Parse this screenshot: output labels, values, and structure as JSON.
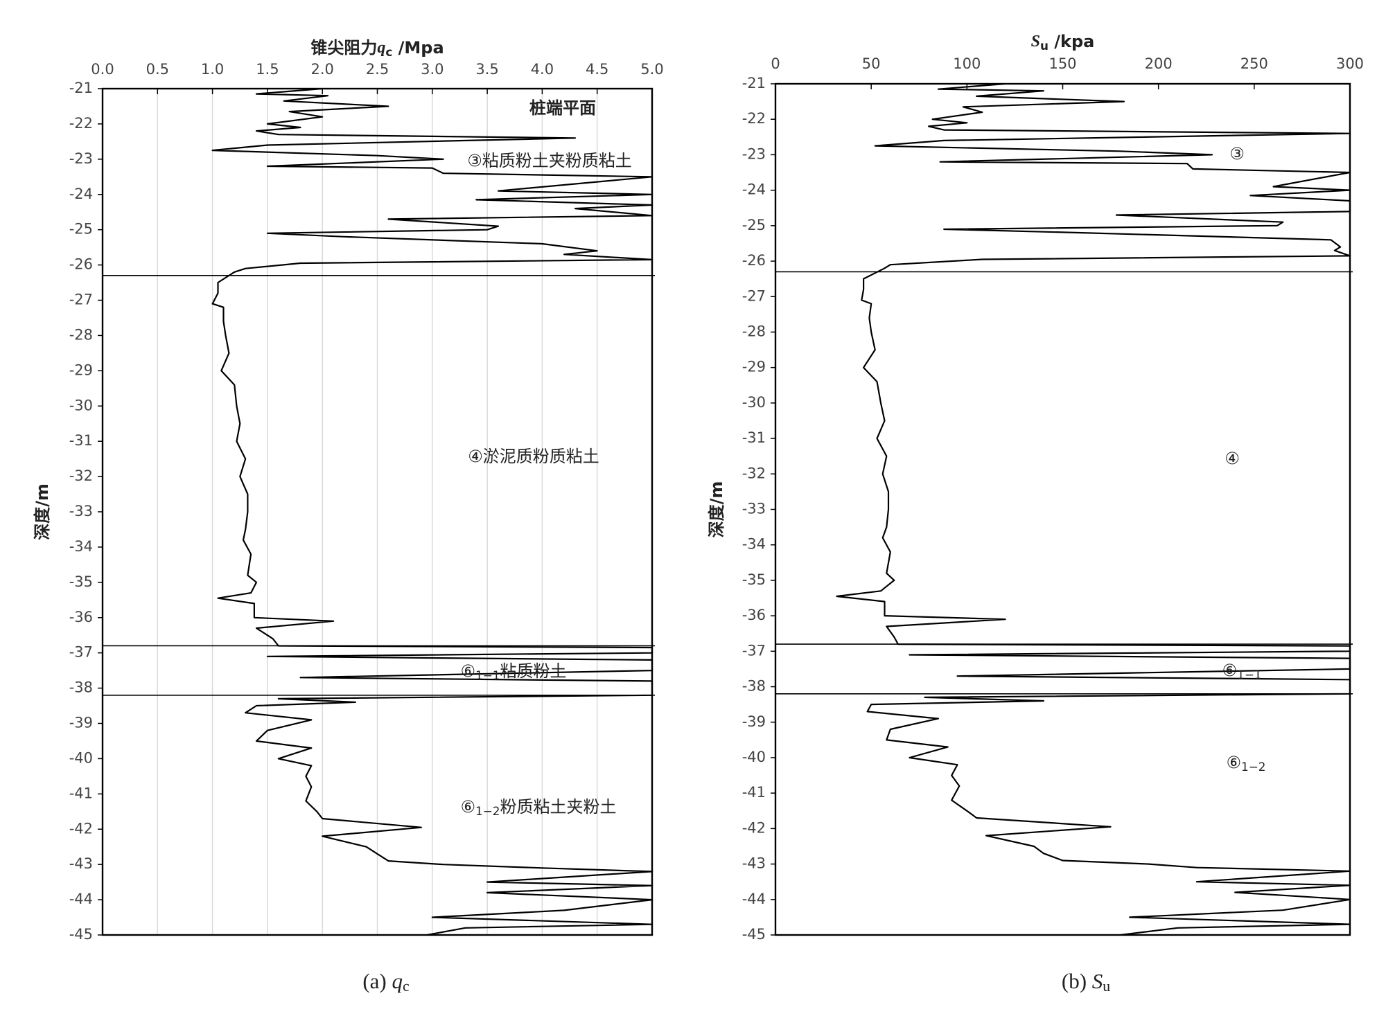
{
  "chart_data": [
    {
      "type": "line",
      "x_label": {
        "main": "锥尖阻力",
        "var": "q",
        "sub": "c",
        "unit": " /Mpa"
      },
      "y_label": "深度/m",
      "caption": {
        "prefix": "(a) ",
        "var": "q",
        "sub": "c"
      },
      "xlim": [
        0,
        5
      ],
      "xticks": [
        {
          "value": 0,
          "label": "0.0"
        },
        0.5,
        {
          "value": 1,
          "label": "1.0"
        },
        1.5,
        {
          "value": 2,
          "label": "2.0"
        },
        2.5,
        {
          "value": 3,
          "label": "3.0"
        },
        3.5,
        {
          "value": 4,
          "label": "4.0"
        },
        4.5,
        {
          "value": 5,
          "label": "5.0"
        }
      ],
      "ylim": [
        -45,
        -21
      ],
      "yticks": [
        -21,
        -22,
        -23,
        -24,
        -25,
        -26,
        -27,
        -28,
        -29,
        -30,
        -31,
        -32,
        -33,
        -34,
        -35,
        -36,
        -37,
        -38,
        -39,
        -40,
        -41,
        -42,
        -43,
        -44,
        -45
      ],
      "grid": true,
      "color": "#000000",
      "layer_boundaries": [
        -26.3,
        -36.8,
        -38.2
      ],
      "annotations": [
        {
          "text": "桩端平面"
        },
        {
          "text": "③粘质粉土夹粉质粘土"
        },
        {
          "text": "④淤泥质粉质粘土"
        },
        {
          "text": "⑥",
          "sub": "1−1",
          "rest": "粘质粉土"
        },
        {
          "text": "⑥",
          "sub": "1−2",
          "rest": "粉质粘土夹粉土"
        }
      ],
      "values": [
        -21.0,
        -21.15,
        -21.2,
        -21.35,
        -21.5,
        -21.65,
        -21.8,
        -22.0,
        -22.1,
        -22.2,
        -22.3,
        -22.4,
        -22.6,
        -22.75,
        -22.9,
        -23.0,
        -23.2,
        -23.25,
        -23.4,
        -23.5,
        -23.9,
        -24.0,
        -24.15,
        -24.3,
        -24.4,
        -24.6,
        -24.7,
        -24.9,
        -25.0,
        -25.1,
        -25.2,
        -25.4,
        -25.6,
        -25.7,
        -25.85,
        -25.95,
        -26.1,
        -26.2,
        -26.5,
        -26.8,
        -27.1,
        -27.2,
        -27.6,
        -28.0,
        -28.5,
        -29.0,
        -29.4,
        -30.0,
        -30.5,
        -31.0,
        -31.5,
        -32.0,
        -32.5,
        -33.0,
        -33.5,
        -33.8,
        -34.2,
        -34.8,
        -35.0,
        -35.3,
        -35.45,
        -35.6,
        -36.0,
        -36.1,
        -36.3,
        -36.6,
        -36.8,
        -36.85,
        -37.0,
        -37.1,
        -37.2,
        -37.5,
        -37.7,
        -37.8,
        -38.2,
        -38.3,
        -38.4,
        -38.5,
        -38.7,
        -38.9,
        -39.2,
        -39.5,
        -39.7,
        -40.0,
        -40.2,
        -40.5,
        -40.8,
        -41.2,
        -41.5,
        -41.7,
        -41.95,
        -42.2,
        -42.5,
        -42.7,
        -42.9,
        -43.0,
        -43.1,
        -43.2,
        -43.5,
        -43.6,
        -43.8,
        -44.0,
        -44.3,
        -44.5,
        -44.7,
        -44.8,
        -45.0
      ],
      "x": [
        2.0,
        1.4,
        2.05,
        1.65,
        2.6,
        1.7,
        2.0,
        1.5,
        1.8,
        1.4,
        1.6,
        4.3,
        1.5,
        1.0,
        2.5,
        3.1,
        1.5,
        3.0,
        3.1,
        5.0,
        3.6,
        5.0,
        3.4,
        5.0,
        4.3,
        5.0,
        2.6,
        3.6,
        3.5,
        1.5,
        2.2,
        4.0,
        4.5,
        4.2,
        5.0,
        1.8,
        1.3,
        1.2,
        1.05,
        1.05,
        1.0,
        1.1,
        1.1,
        1.12,
        1.15,
        1.08,
        1.2,
        1.22,
        1.25,
        1.22,
        1.3,
        1.25,
        1.32,
        1.32,
        1.3,
        1.28,
        1.35,
        1.32,
        1.4,
        1.35,
        1.05,
        1.38,
        1.38,
        2.1,
        1.4,
        1.55,
        1.6,
        5.0,
        5.0,
        1.5,
        5.0,
        5.0,
        1.8,
        5.0,
        5.0,
        1.6,
        2.3,
        1.4,
        1.3,
        1.9,
        1.5,
        1.4,
        1.9,
        1.6,
        1.9,
        1.85,
        1.9,
        1.85,
        1.95,
        2.0,
        2.9,
        2.0,
        2.4,
        2.5,
        2.6,
        3.1,
        4.0,
        5.0,
        3.5,
        5.0,
        3.5,
        5.0,
        4.2,
        3.0,
        5.0,
        3.3,
        2.95
      ]
    },
    {
      "type": "line",
      "x_label": {
        "main": "",
        "var": "S",
        "sub": "u",
        "unit": " /kpa"
      },
      "y_label": "深度/m",
      "caption": {
        "prefix": "(b) ",
        "var": "S",
        "sub": "u"
      },
      "xlim": [
        0,
        300
      ],
      "xticks": [
        0,
        50,
        100,
        150,
        200,
        250,
        300
      ],
      "ylim": [
        -45,
        -21
      ],
      "yticks": [
        -21,
        -22,
        -23,
        -24,
        -25,
        -26,
        -27,
        -28,
        -29,
        -30,
        -31,
        -32,
        -33,
        -34,
        -35,
        -36,
        -37,
        -38,
        -39,
        -40,
        -41,
        -42,
        -43,
        -44,
        -45
      ],
      "grid": false,
      "color": "#000000",
      "layer_boundaries": [
        -26.3,
        -36.8,
        -38.2
      ],
      "annotations": [
        {
          "text": "③"
        },
        {
          "text": "④"
        },
        {
          "text": "⑥",
          "sub": "1−1"
        },
        {
          "text": "⑥",
          "sub": "1−2"
        }
      ],
      "values": [
        -21.0,
        -21.15,
        -21.2,
        -21.35,
        -21.5,
        -21.65,
        -21.8,
        -22.0,
        -22.1,
        -22.2,
        -22.3,
        -22.4,
        -22.6,
        -22.75,
        -22.9,
        -23.0,
        -23.2,
        -23.25,
        -23.4,
        -23.5,
        -23.9,
        -24.0,
        -24.15,
        -24.3,
        -24.4,
        -24.6,
        -24.7,
        -24.9,
        -25.0,
        -25.1,
        -25.2,
        -25.4,
        -25.6,
        -25.7,
        -25.85,
        -25.95,
        -26.1,
        -26.2,
        -26.5,
        -26.8,
        -27.1,
        -27.2,
        -27.6,
        -28.0,
        -28.5,
        -29.0,
        -29.4,
        -30.0,
        -30.5,
        -31.0,
        -31.5,
        -32.0,
        -32.5,
        -33.0,
        -33.5,
        -33.8,
        -34.2,
        -34.8,
        -35.0,
        -35.3,
        -35.45,
        -35.6,
        -36.0,
        -36.1,
        -36.3,
        -36.6,
        -36.8,
        -36.85,
        -37.0,
        -37.1,
        -37.2,
        -37.5,
        -37.7,
        -37.8,
        -38.2,
        -38.3,
        -38.4,
        -38.5,
        -38.7,
        -38.9,
        -39.2,
        -39.5,
        -39.7,
        -40.0,
        -40.2,
        -40.5,
        -40.8,
        -41.2,
        -41.5,
        -41.7,
        -41.95,
        -42.2,
        -42.5,
        -42.7,
        -42.9,
        -43.0,
        -43.1,
        -43.2,
        -43.5,
        -43.6,
        -43.8,
        -44.0,
        -44.3,
        -44.5,
        -44.7,
        -44.8,
        -45.0
      ],
      "x": [
        120,
        85,
        140,
        105,
        182,
        98,
        108,
        82,
        100,
        80,
        88,
        300,
        88,
        52,
        180,
        228,
        86,
        215,
        218,
        300,
        260,
        300,
        248,
        300,
        300,
        300,
        178,
        265,
        262,
        88,
        160,
        290,
        295,
        292,
        300,
        108,
        60,
        57,
        46,
        46,
        45,
        50,
        49,
        50,
        52,
        46,
        53,
        55,
        57,
        53,
        58,
        56,
        59,
        59,
        58,
        56,
        60,
        58,
        62,
        55,
        32,
        57,
        57,
        120,
        58,
        62,
        64,
        300,
        300,
        70,
        300,
        300,
        95,
        300,
        300,
        78,
        140,
        50,
        48,
        85,
        60,
        58,
        90,
        70,
        95,
        92,
        96,
        92,
        100,
        105,
        175,
        110,
        135,
        140,
        150,
        195,
        220,
        300,
        220,
        300,
        240,
        300,
        265,
        185,
        300,
        210,
        180
      ]
    }
  ]
}
